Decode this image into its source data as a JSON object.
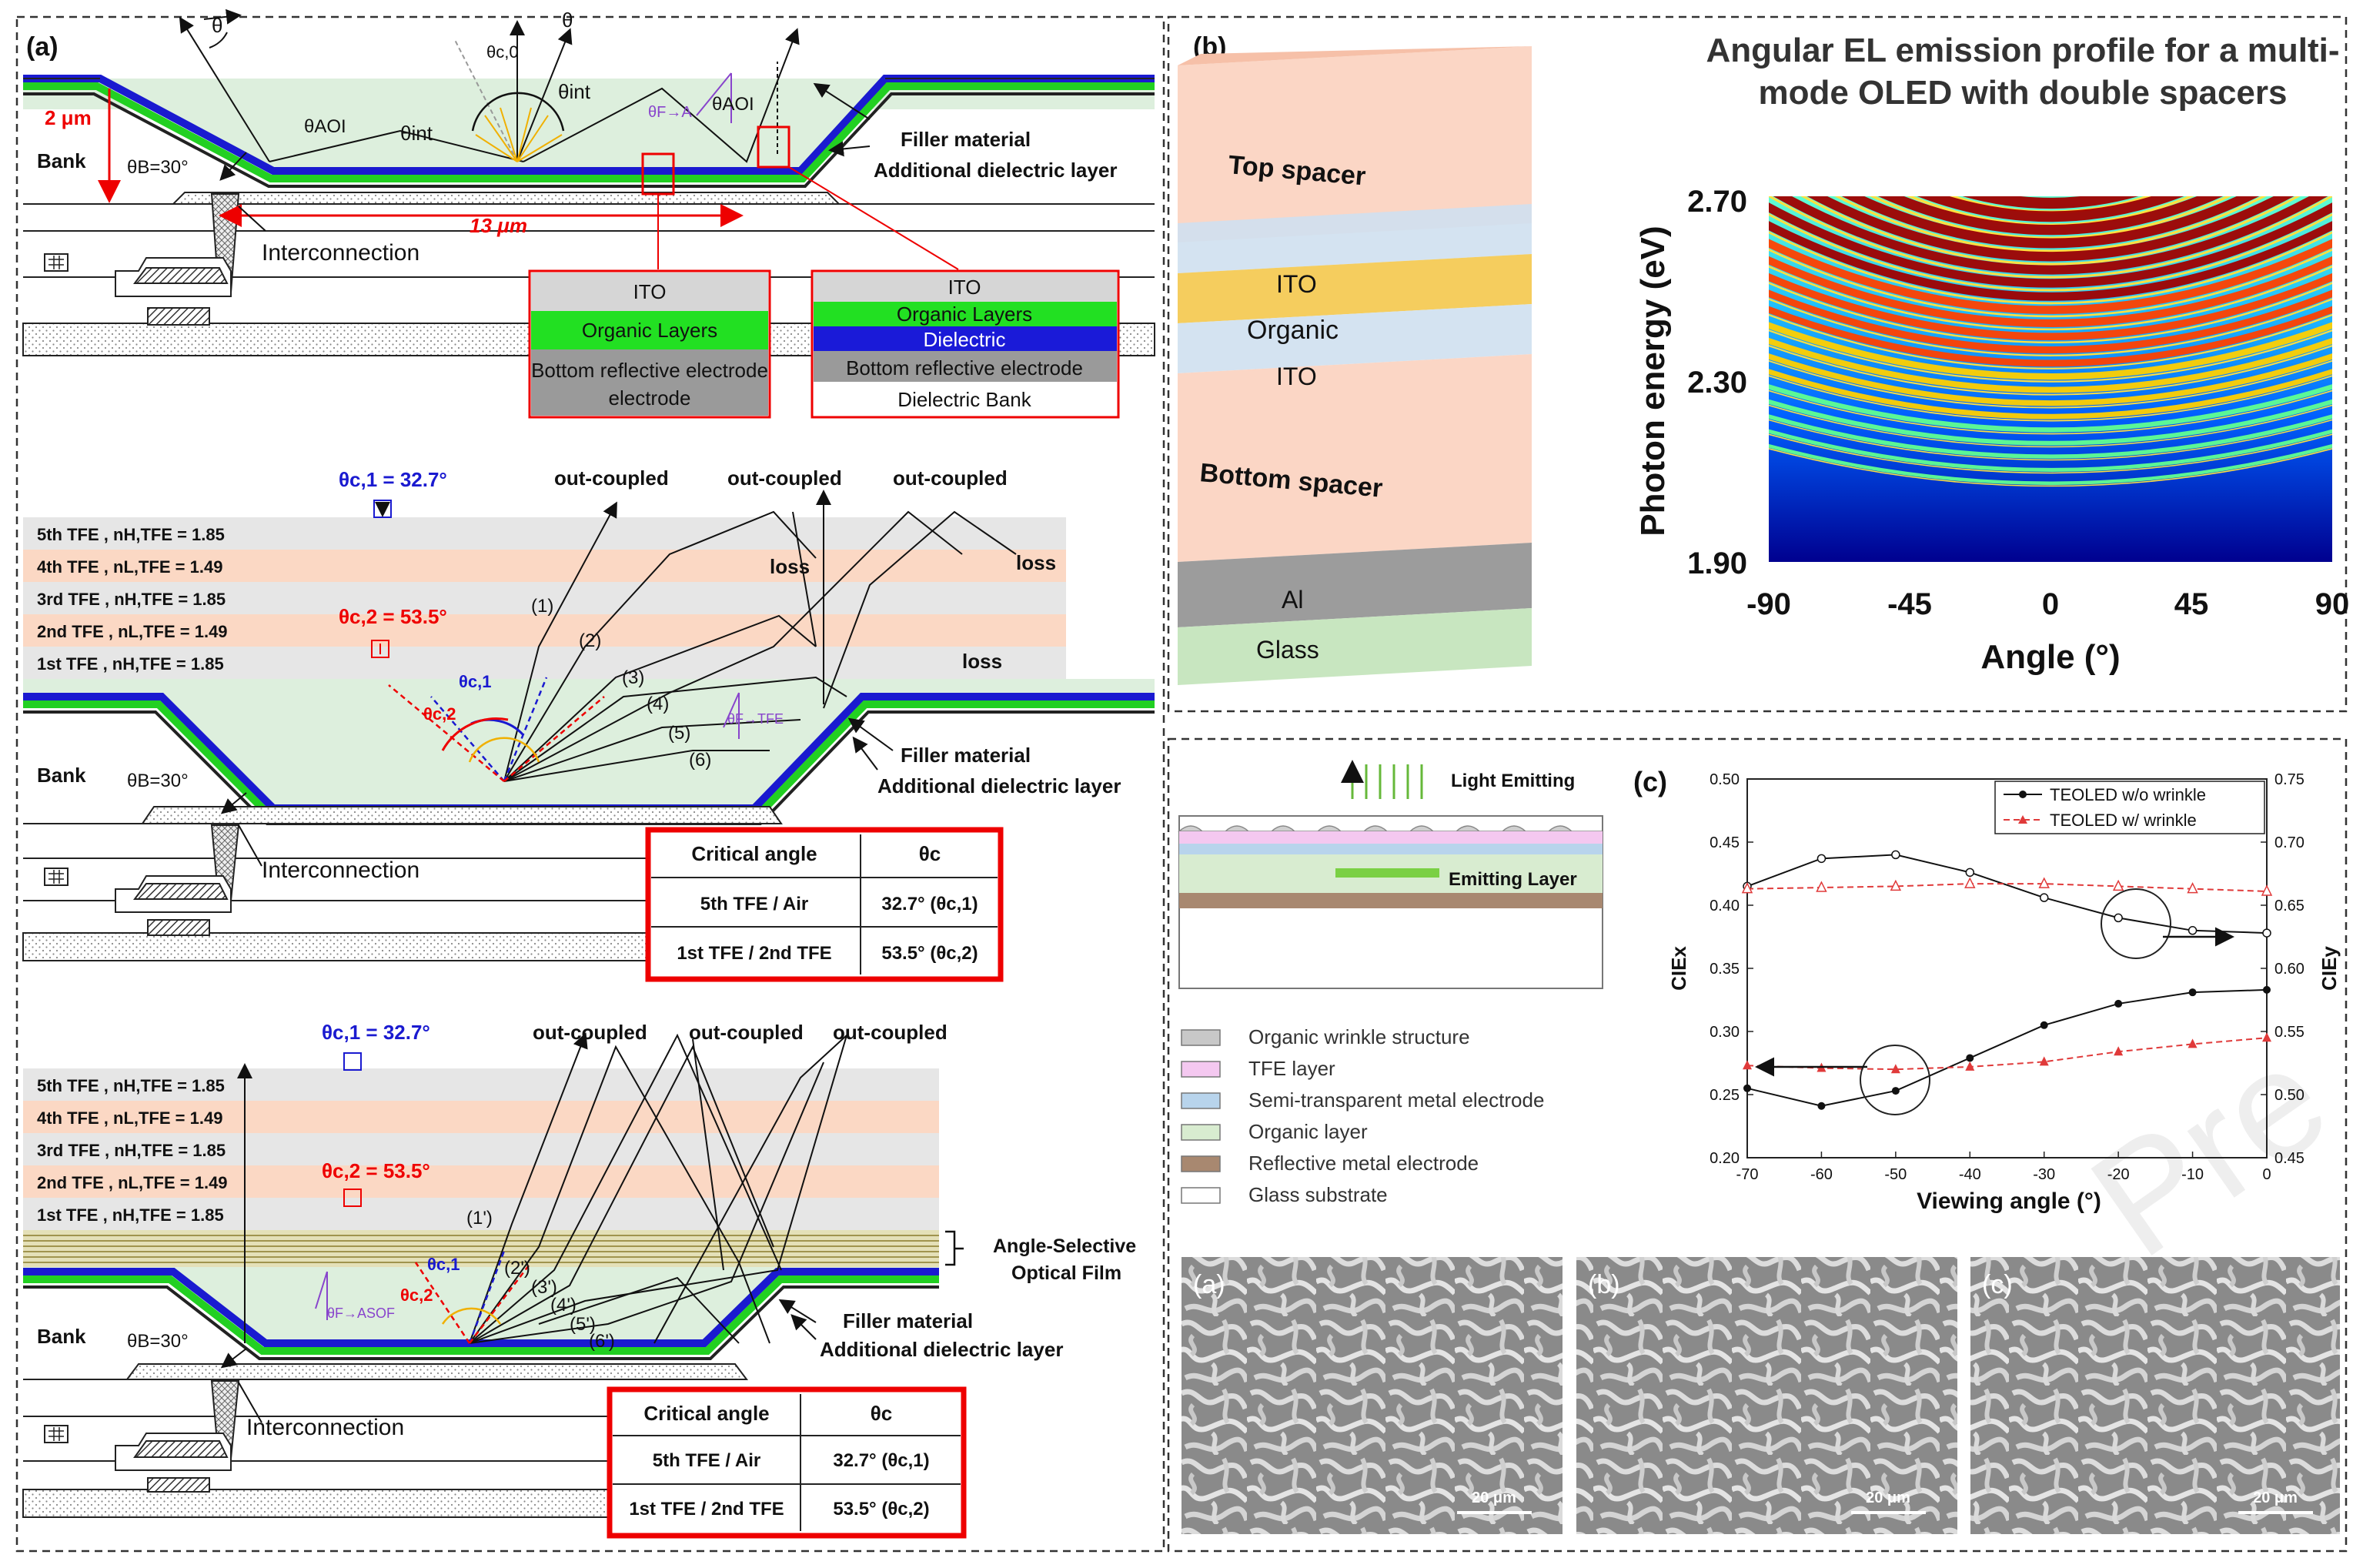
{
  "panel_a": {
    "label": "(a)",
    "top": {
      "theta_labels": [
        "θ",
        "θ",
        "θc,0",
        "θint",
        "θint",
        "θAOI",
        "θAOI",
        "θF→A"
      ],
      "dim_height": "2 μm",
      "dim_width": "13 μm",
      "bank": "Bank",
      "bank_angle": "θB=30°",
      "interconnection": "Interconnection",
      "filler": "Filler material",
      "dielectric_layer": "Additional dielectric layer",
      "inset1": [
        "ITO",
        "Organic Layers",
        "Bottom reflective electrode"
      ],
      "inset2": [
        "ITO",
        "Organic Layers",
        "Dielectric",
        "Bottom reflective electrode",
        "Dielectric Bank"
      ]
    },
    "middle": {
      "theta_c1": "θc,1 = 32.7°",
      "theta_c2": "θc,2 = 53.5°",
      "layers": [
        "5th TFE , nH,TFE = 1.85",
        "4th TFE , nL,TFE = 1.49",
        "3rd TFE , nH,TFE = 1.85",
        "2nd TFE , nL,TFE = 1.49",
        "1st TFE , nH,TFE = 1.85"
      ],
      "outcoupled": [
        "out-coupled",
        "out-coupled",
        "out-coupled"
      ],
      "loss": [
        "loss",
        "loss",
        "loss"
      ],
      "ray_ids": [
        "(1)",
        "(2)",
        "(3)",
        "(4)",
        "(5)",
        "(6)"
      ],
      "theta_small": [
        "θc,1",
        "θc,2",
        "θF→TFE"
      ],
      "filler": "Filler material",
      "dielectric_layer": "Additional dielectric layer",
      "bank": "Bank",
      "bank_angle": "θB=30°",
      "interconnection": "Interconnection",
      "table": {
        "header": [
          "Critical angle",
          "θc"
        ],
        "rows": [
          [
            "5th TFE / Air",
            "32.7° (θc,1)"
          ],
          [
            "1st TFE / 2nd TFE",
            "53.5° (θc,2)"
          ]
        ]
      }
    },
    "bottom": {
      "theta_c1": "θc,1 = 32.7°",
      "theta_c2": "θc,2 = 53.5°",
      "layers": [
        "5th TFE , nH,TFE = 1.85",
        "4th TFE , nL,TFE = 1.49",
        "3rd TFE , nH,TFE = 1.85",
        "2nd TFE , nL,TFE = 1.49",
        "1st TFE , nH,TFE = 1.85"
      ],
      "outcoupled": [
        "out-coupled",
        "out-coupled",
        "out-coupled"
      ],
      "ray_ids": [
        "(1')",
        "(2')",
        "(3')",
        "(4')",
        "(5')",
        "(6')"
      ],
      "theta_small": [
        "θc,1",
        "θc,2",
        "θF→ASOF"
      ],
      "asof_line1": "Angle-Selective",
      "asof_line2": "Optical Film",
      "filler": "Filler material",
      "dielectric_layer": "Additional dielectric layer",
      "bank": "Bank",
      "bank_angle": "θB=30°",
      "interconnection": "Interconnection",
      "table": {
        "header": [
          "Critical angle",
          "θc"
        ],
        "rows": [
          [
            "5th TFE / Air",
            "32.7° (θc,1)"
          ],
          [
            "1st TFE / 2nd TFE",
            "53.5° (θc,2)"
          ]
        ]
      }
    }
  },
  "panel_b": {
    "label": "(b)",
    "stack_labels": [
      "Top spacer",
      "ITO",
      "Organic",
      "ITO",
      "Bottom spacer",
      "Al",
      "Glass"
    ],
    "title_line1": "Angular EL emission profile for a multi-",
    "title_line2": "mode OLED with double spacers",
    "chart_data": {
      "type": "heatmap",
      "title": "Angular EL emission profile for a multi-mode OLED with double spacers",
      "xlabel": "Angle (°)",
      "ylabel": "Photon energy (eV)",
      "xlim": [
        -90,
        90
      ],
      "ylim": [
        1.9,
        2.7
      ],
      "xticks": [
        "-90",
        "-45",
        "0",
        "45",
        "90"
      ],
      "yticks": [
        "2.70",
        "2.30",
        "1.90"
      ],
      "fringe_count": 22,
      "colormap": "jet"
    }
  },
  "panel_c": {
    "label": "(c)",
    "schematic": {
      "light": "Light Emitting",
      "emitting_layer": "Emitting Layer",
      "legend": [
        {
          "label": "Organic wrinkle structure",
          "color": "#c8c8c8"
        },
        {
          "label": "TFE layer",
          "color": "#f4c8f0"
        },
        {
          "label": "Semi-transparent metal electrode",
          "color": "#b8d4ec"
        },
        {
          "label": "Organic layer",
          "color": "#d8ecd0"
        },
        {
          "label": "Reflective metal electrode",
          "color": "#a88870"
        },
        {
          "label": "Glass substrate",
          "color": "#ffffff"
        }
      ]
    },
    "chart_data": {
      "type": "line",
      "xlabel": "Viewing angle (°)",
      "ylabel_left": "CIEx",
      "ylabel_right": "CIEy",
      "x": [
        -70,
        -60,
        -50,
        -40,
        -30,
        -20,
        -10,
        0
      ],
      "xticks": [
        "-70",
        "-60",
        "-50",
        "-40",
        "-30",
        "-20",
        "-10",
        "0"
      ],
      "ylim_left": [
        0.2,
        0.5
      ],
      "yticks_left": [
        "0.50",
        "0.45",
        "0.40",
        "0.35",
        "0.30",
        "0.25",
        "0.20"
      ],
      "ylim_right": [
        0.45,
        0.75
      ],
      "yticks_right": [
        "0.75",
        "0.70",
        "0.65",
        "0.60",
        "0.55",
        "0.50",
        "0.45"
      ],
      "legend": [
        "TEOLED w/o wrinkle",
        "TEOLED w/ wrinkle"
      ],
      "series": [
        {
          "name": "TEOLED w/o wrinkle CIEx",
          "axis": "left",
          "values": [
            0.255,
            0.241,
            0.253,
            0.279,
            0.305,
            0.322,
            0.331,
            0.333
          ]
        },
        {
          "name": "TEOLED w/o wrinkle CIEy",
          "axis": "right",
          "values": [
            0.665,
            0.687,
            0.69,
            0.676,
            0.656,
            0.64,
            0.63,
            0.628
          ]
        },
        {
          "name": "TEOLED w/ wrinkle CIEx",
          "axis": "left",
          "values": [
            0.273,
            0.271,
            0.27,
            0.272,
            0.276,
            0.284,
            0.29,
            0.295
          ]
        },
        {
          "name": "TEOLED w/ wrinkle CIEy",
          "axis": "right",
          "values": [
            0.663,
            0.664,
            0.665,
            0.667,
            0.667,
            0.665,
            0.663,
            0.661
          ]
        }
      ]
    },
    "sem_labels": [
      "(a)",
      "(b)",
      "(c)"
    ],
    "scale_bar": "20 μm",
    "watermark": "Pre"
  }
}
